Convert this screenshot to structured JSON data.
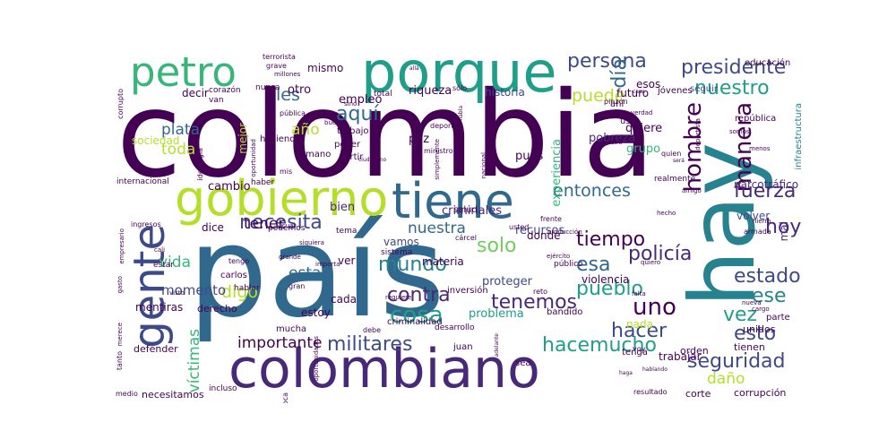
{
  "colors": {
    "background": "#ffffff",
    "palette": [
      "#440154",
      "#482878",
      "#3e4989",
      "#31688e",
      "#26828e",
      "#1f9e89",
      "#35b779",
      "#6ece58",
      "#b5de2b",
      "#fde725"
    ]
  },
  "words": [
    {
      "text": "colombia",
      "color": "#440154"
    },
    {
      "text": "país",
      "color": "#31688e"
    },
    {
      "text": "hay",
      "color": "#26828e"
    },
    {
      "text": "colombiano",
      "color": "#482878"
    },
    {
      "text": "porque",
      "color": "#1f9e89"
    },
    {
      "text": "gobierno",
      "color": "#b5de2b"
    },
    {
      "text": "tiene",
      "color": "#31688e"
    },
    {
      "text": "gente",
      "color": "#3e4989"
    },
    {
      "text": "petro",
      "color": "#35b779"
    },
    {
      "text": "presidente",
      "color": "#3e4989"
    },
    {
      "text": "persona",
      "color": "#3e4989"
    },
    {
      "text": "nuestro",
      "color": "#1f9e89"
    },
    {
      "text": "día",
      "color": "#31688e"
    },
    {
      "text": "puede",
      "color": "#b5de2b"
    },
    {
      "text": "hombre",
      "color": "#440154"
    },
    {
      "text": "manera",
      "color": "#440154"
    },
    {
      "text": "fuerza",
      "color": "#482878"
    },
    {
      "text": "entonces",
      "color": "#31688e"
    },
    {
      "text": "necesita",
      "color": "#3e4989"
    },
    {
      "text": "tener",
      "color": "#440154"
    },
    {
      "text": "solo",
      "color": "#6ece58"
    },
    {
      "text": "tiempo",
      "color": "#440154"
    },
    {
      "text": "esa",
      "color": "#31688e"
    },
    {
      "text": "policía",
      "color": "#482878"
    },
    {
      "text": "estado",
      "color": "#3e4989"
    },
    {
      "text": "mundo",
      "color": "#26828e"
    },
    {
      "text": "pueblo",
      "color": "#1f9e89"
    },
    {
      "text": "ese",
      "color": "#26828e"
    },
    {
      "text": "uno",
      "color": "#440154"
    },
    {
      "text": "tenemos",
      "color": "#482878"
    },
    {
      "text": "contra",
      "color": "#482878"
    },
    {
      "text": "cosa",
      "color": "#1f9e89"
    },
    {
      "text": "hacer",
      "color": "#3e4989"
    },
    {
      "text": "esto",
      "color": "#3e4989"
    },
    {
      "text": "hoy",
      "color": "#482878"
    },
    {
      "text": "vez",
      "color": "#1f9e89"
    },
    {
      "text": "hacemucho",
      "color": "#1f9e89"
    },
    {
      "text": "seguridad",
      "color": "#3e4989"
    },
    {
      "text": "daño",
      "color": "#b5de2b"
    },
    {
      "text": "militares",
      "color": "#3e4989"
    },
    {
      "text": "importante",
      "color": "#440154"
    },
    {
      "text": "víctimas",
      "color": "#35b779"
    },
    {
      "text": "vida",
      "color": "#35b779"
    },
    {
      "text": "aquí",
      "color": "#31688e"
    },
    {
      "text": "año",
      "color": "#b5de2b"
    },
    {
      "text": "toda",
      "color": "#b5de2b"
    },
    {
      "text": "plata",
      "color": "#31688e"
    },
    {
      "text": "les",
      "color": "#31688e"
    },
    {
      "text": "nuestra",
      "color": "#31688e"
    },
    {
      "text": "esta",
      "color": "#31688e"
    },
    {
      "text": "digo",
      "color": "#b5de2b"
    },
    {
      "text": "momento",
      "color": "#3e4989"
    },
    {
      "text": "cambio",
      "color": "#440154"
    },
    {
      "text": "bien",
      "color": "#482878"
    },
    {
      "text": "criminales",
      "color": "#482878"
    },
    {
      "text": "riqueza",
      "color": "#440154"
    },
    {
      "text": "historia",
      "color": "#3e4989"
    },
    {
      "text": "futuro",
      "color": "#440154"
    },
    {
      "text": "paz",
      "color": "#440154"
    },
    {
      "text": "pues",
      "color": "#440154"
    },
    {
      "text": "experiencia",
      "color": "#35b779"
    },
    {
      "text": "quiere",
      "color": "#440154"
    },
    {
      "text": "grupo",
      "color": "#35b779"
    },
    {
      "text": "pobreza",
      "color": "#482878"
    },
    {
      "text": "empleo",
      "color": "#440154"
    },
    {
      "text": "otro",
      "color": "#440154"
    },
    {
      "text": "mismo",
      "color": "#440154"
    },
    {
      "text": "decir",
      "color": "#440154"
    },
    {
      "text": "sociedad",
      "color": "#b5de2b"
    },
    {
      "text": "mejor",
      "color": "#b5de2b"
    },
    {
      "text": "recursos",
      "color": "#3e4989"
    },
    {
      "text": "donde",
      "color": "#440154"
    },
    {
      "text": "vamos",
      "color": "#3e4989"
    },
    {
      "text": "materia",
      "color": "#440154"
    },
    {
      "text": "proteger",
      "color": "#3e4989"
    },
    {
      "text": "problema",
      "color": "#1f9e89"
    },
    {
      "text": "estoy",
      "color": "#440154"
    },
    {
      "text": "cada",
      "color": "#440154"
    },
    {
      "text": "dice",
      "color": "#440154"
    },
    {
      "text": "ver",
      "color": "#440154"
    },
    {
      "text": "mentiras",
      "color": "#440154"
    },
    {
      "text": "derecho",
      "color": "#440154"
    },
    {
      "text": "trabajar",
      "color": "#440154"
    },
    {
      "text": "nada",
      "color": "#b5de2b"
    },
    {
      "text": "violencia",
      "color": "#440154"
    },
    {
      "text": "volver",
      "color": "#3e4989"
    },
    {
      "text": "mal",
      "color": "#482878"
    },
    {
      "text": "narcotráfico",
      "color": "#482878"
    },
    {
      "text": "unidos",
      "color": "#440154"
    },
    {
      "text": "tienen",
      "color": "#440154"
    },
    {
      "text": "orden",
      "color": "#440154"
    },
    {
      "text": "corte",
      "color": "#440154"
    },
    {
      "text": "corrupción",
      "color": "#440154"
    },
    {
      "text": "defender",
      "color": "#440154"
    },
    {
      "text": "necesitamos",
      "color": "#440154"
    },
    {
      "text": "incluso",
      "color": "#440154"
    },
    {
      "text": "esos",
      "color": "#440154"
    },
    {
      "text": "seguir",
      "color": "#3e4989"
    },
    {
      "text": "educación",
      "color": "#440154"
    },
    {
      "text": "jóvenes",
      "color": "#440154"
    },
    {
      "text": "república",
      "color": "#440154"
    },
    {
      "text": "infraestructura",
      "color": "#26828e"
    },
    {
      "text": "mucha",
      "color": "#440154"
    },
    {
      "text": "juan",
      "color": "#440154"
    },
    {
      "text": "tenga",
      "color": "#440154"
    },
    {
      "text": "parte",
      "color": "#440154"
    },
    {
      "text": "inversión",
      "color": "#440154"
    },
    {
      "text": "sea",
      "color": "#440154"
    },
    {
      "text": "salud",
      "color": "#440154"
    },
    {
      "text": "criminalidad",
      "color": "#440154"
    },
    {
      "text": "desarrollo",
      "color": "#440154"
    },
    {
      "text": "bandido",
      "color": "#440154"
    },
    {
      "text": "carlos",
      "color": "#440154"
    },
    {
      "text": "hablar",
      "color": "#440154"
    },
    {
      "text": "estar",
      "color": "#440154"
    },
    {
      "text": "tengo",
      "color": "#440154"
    },
    {
      "text": "podemos",
      "color": "#440154"
    },
    {
      "text": "tema",
      "color": "#440154"
    },
    {
      "text": "sistema",
      "color": "#440154"
    },
    {
      "text": "público",
      "color": "#440154"
    },
    {
      "text": "frente",
      "color": "#440154"
    },
    {
      "text": "usted",
      "color": "#440154"
    },
    {
      "text": "uso",
      "color": "#440154"
    },
    {
      "text": "haber",
      "color": "#440154"
    },
    {
      "text": "poder",
      "color": "#440154"
    },
    {
      "text": "partir",
      "color": "#440154"
    },
    {
      "text": "mano",
      "color": "#440154"
    },
    {
      "text": "haciendo",
      "color": "#440154"
    },
    {
      "text": "trabajo",
      "color": "#440154"
    },
    {
      "text": "total",
      "color": "#440154"
    },
    {
      "text": "nunca",
      "color": "#440154"
    },
    {
      "text": "van",
      "color": "#440154"
    },
    {
      "text": "corazón",
      "color": "#440154"
    },
    {
      "text": "terrorista",
      "color": "#440154"
    },
    {
      "text": "grave",
      "color": "#440154"
    },
    {
      "text": "internacional",
      "color": "#440154"
    },
    {
      "text": "ingresos",
      "color": "#440154"
    },
    {
      "text": "cali",
      "color": "#440154"
    },
    {
      "text": "medio",
      "color": "#440154"
    },
    {
      "text": "coca",
      "color": "#440154"
    },
    {
      "text": "realmente",
      "color": "#440154"
    },
    {
      "text": "armada",
      "color": "#440154"
    },
    {
      "text": "hierro",
      "color": "#440154"
    },
    {
      "text": "hecho",
      "color": "#440154"
    },
    {
      "text": "amigo",
      "color": "#440154"
    },
    {
      "text": "ministro",
      "color": "#440154"
    },
    {
      "text": "deporte",
      "color": "#440154"
    },
    {
      "text": "pública",
      "color": "#440154"
    },
    {
      "text": "millones",
      "color": "#440154"
    },
    {
      "text": "buena",
      "color": "#440154"
    },
    {
      "text": "sino",
      "color": "#440154"
    },
    {
      "text": "corrupto",
      "color": "#440154"
    },
    {
      "text": "gasto",
      "color": "#440154"
    },
    {
      "text": "mis",
      "color": "#440154"
    },
    {
      "text": "gran",
      "color": "#440154"
    },
    {
      "text": "debe",
      "color": "#440154"
    },
    {
      "text": "resultado",
      "color": "#440154"
    },
    {
      "text": "cargo",
      "color": "#440154"
    },
    {
      "text": "nueva",
      "color": "#440154"
    },
    {
      "text": "quiero",
      "color": "#440154"
    },
    {
      "text": "voy",
      "color": "#440154"
    },
    {
      "text": "quien",
      "color": "#440154"
    },
    {
      "text": "somos",
      "color": "#440154"
    },
    {
      "text": "menos",
      "color": "#440154"
    },
    {
      "text": "pinzón",
      "color": "#440154"
    },
    {
      "text": "verdad",
      "color": "#440154"
    },
    {
      "text": "casa",
      "color": "#440154"
    },
    {
      "text": "reto",
      "color": "#440154"
    },
    {
      "text": "producción",
      "color": "#440154"
    },
    {
      "text": "ejército",
      "color": "#440154"
    },
    {
      "text": "cárcel",
      "color": "#440154"
    },
    {
      "text": "requiere",
      "color": "#440154"
    },
    {
      "text": "importa",
      "color": "#440154"
    },
    {
      "text": "siquiera",
      "color": "#440154"
    },
    {
      "text": "grande",
      "color": "#440154"
    },
    {
      "text": "merece",
      "color": "#440154"
    },
    {
      "text": "visto",
      "color": "#440154"
    },
    {
      "text": "cual",
      "color": "#440154"
    },
    {
      "text": "ciudadano",
      "color": "#440154"
    },
    {
      "text": "habla",
      "color": "#440154"
    },
    {
      "text": "otra",
      "color": "#440154"
    },
    {
      "text": "será",
      "color": "#440154"
    },
    {
      "text": "allá",
      "color": "#440154"
    },
    {
      "text": "empresario",
      "color": "#440154"
    },
    {
      "text": "ideología",
      "color": "#440154"
    },
    {
      "text": "oportunidad",
      "color": "#440154"
    },
    {
      "text": "oportunidades",
      "color": "#440154"
    },
    {
      "text": "adelante",
      "color": "#440154"
    },
    {
      "text": "simplemente",
      "color": "#440154"
    },
    {
      "text": "nacional",
      "color": "#440154"
    },
    {
      "text": "deportista",
      "color": "#440154"
    },
    {
      "text": "falta",
      "color": "#440154"
    },
    {
      "text": "haga",
      "color": "#440154"
    },
    {
      "text": "hablando",
      "color": "#440154"
    },
    {
      "text": "ahí",
      "color": "#440154"
    },
    {
      "text": "tanto",
      "color": "#440154"
    },
    {
      "text": "sólo",
      "color": "#440154"
    }
  ]
}
